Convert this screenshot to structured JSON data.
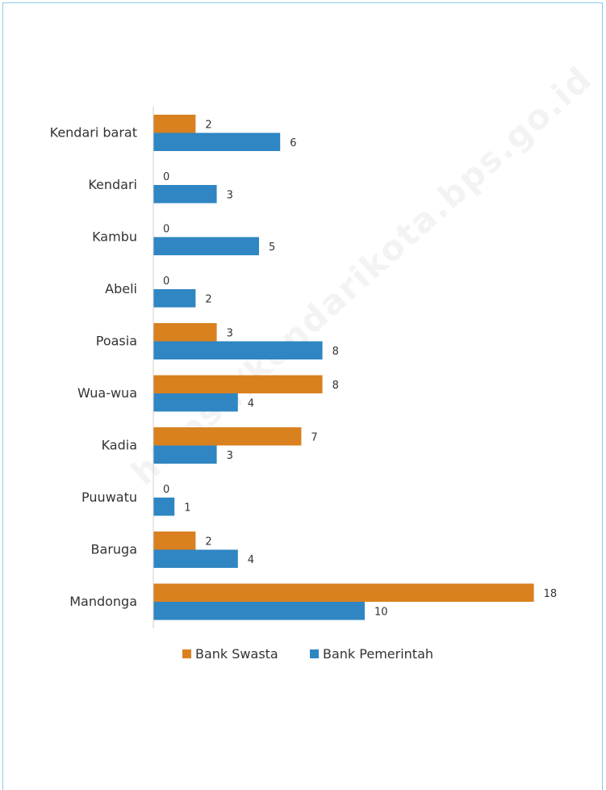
{
  "watermark": "https://kendarikota.bps.go.id",
  "colors": {
    "swasta": "#d9801f",
    "pemerintah": "#2f86c3",
    "axis": "#cfcfcf",
    "frame": "#8ccbe8"
  },
  "chart_data": {
    "type": "bar",
    "orientation": "horizontal",
    "categories": [
      "Kendari barat",
      "Kendari",
      "Kambu",
      "Abeli",
      "Poasia",
      "Wua-wua",
      "Kadia",
      "Puuwatu",
      "Baruga",
      "Mandonga"
    ],
    "series": [
      {
        "name": "Bank Swasta",
        "color": "#d9801f",
        "values": [
          2,
          0,
          0,
          0,
          3,
          8,
          7,
          0,
          2,
          18
        ]
      },
      {
        "name": "Bank Pemerintah",
        "color": "#2f86c3",
        "values": [
          6,
          3,
          5,
          2,
          8,
          4,
          3,
          1,
          4,
          10
        ]
      }
    ],
    "xlim": [
      0,
      18
    ],
    "grid": false,
    "legend_position": "bottom",
    "data_labels": true
  }
}
